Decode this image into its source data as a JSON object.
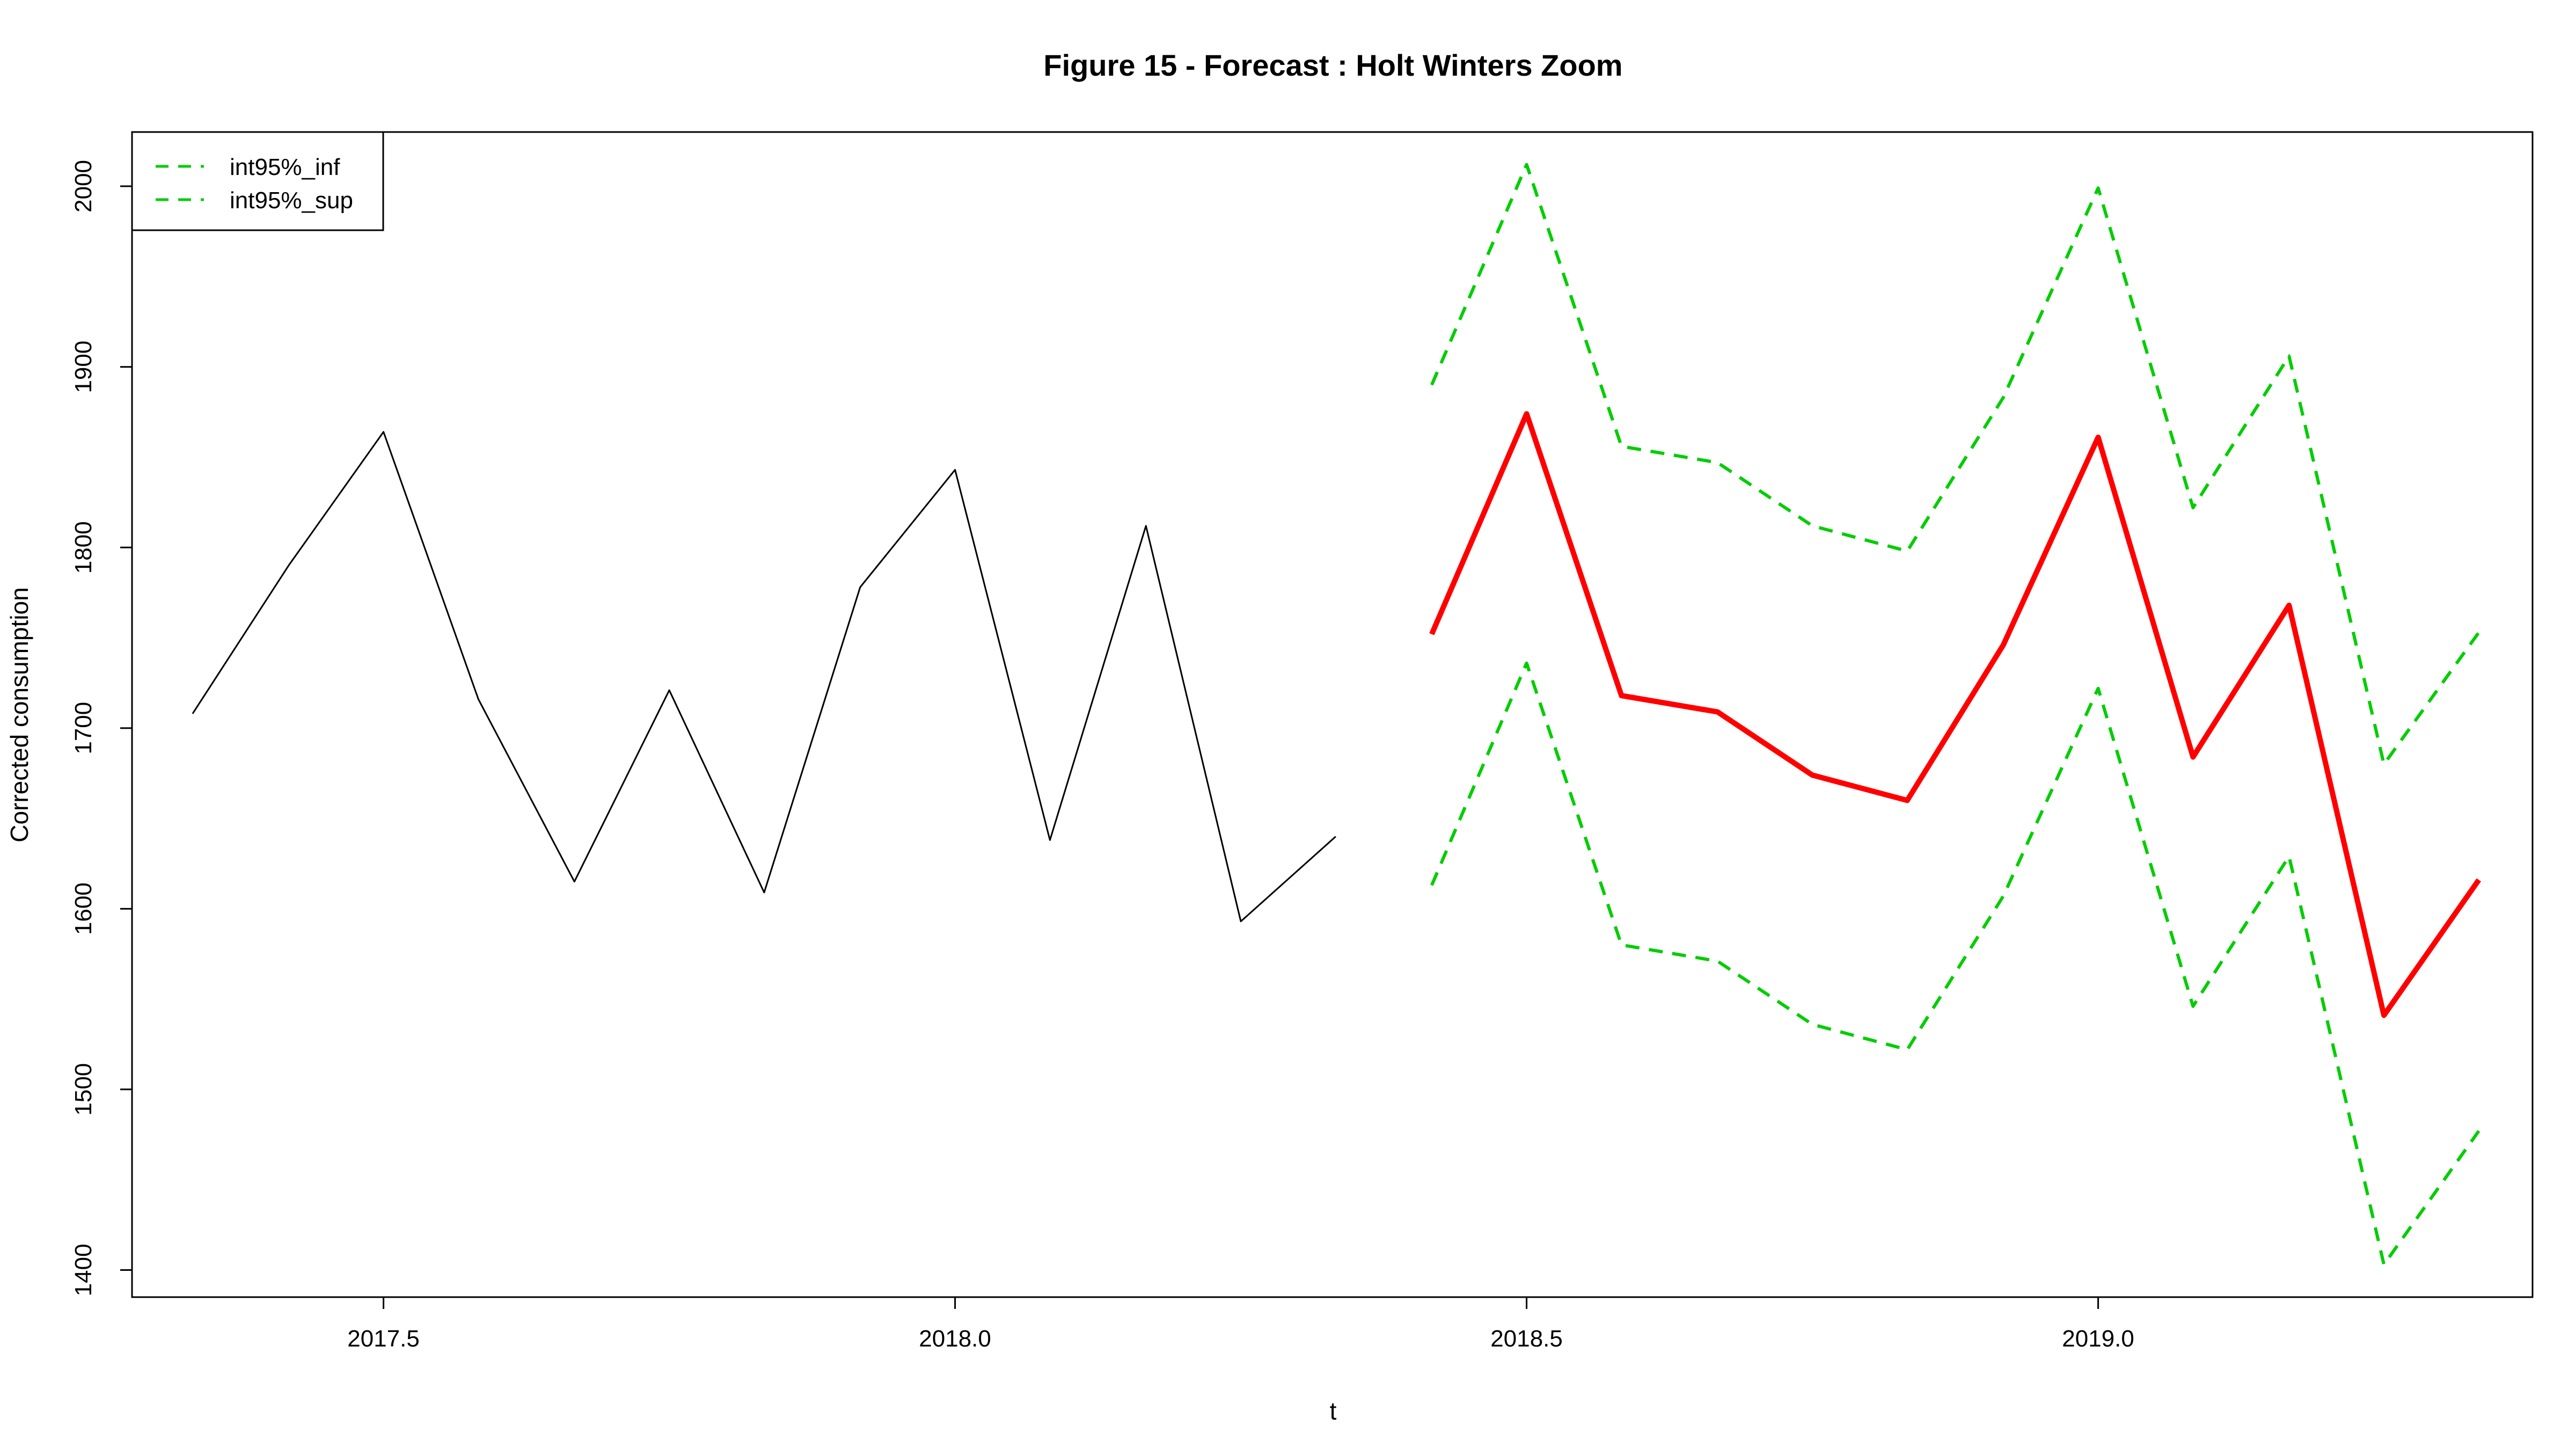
{
  "chart_data": {
    "type": "line",
    "title": "Figure 15 - Forecast : Holt Winters Zoom",
    "xlabel": "t",
    "ylabel": "Corrected consumption",
    "xlim": [
      2017.28,
      2019.38
    ],
    "ylim": [
      1385,
      2030
    ],
    "x_ticks": [
      2017.5,
      2018.0,
      2018.5,
      2019.0
    ],
    "x_tick_labels": [
      "2017.5",
      "2018.0",
      "2018.5",
      "2019.0"
    ],
    "y_ticks": [
      1400,
      1500,
      1600,
      1700,
      1800,
      1900,
      2000
    ],
    "y_tick_labels": [
      "1400",
      "1500",
      "1600",
      "1700",
      "1800",
      "1900",
      "2000"
    ],
    "grid": false,
    "legend": {
      "placement": "top-left",
      "entries": [
        "int95%_inf",
        "int95%_sup"
      ]
    },
    "series": [
      {
        "key": "observed",
        "color": "#000000",
        "style": "solid",
        "x": [
          2017.333,
          2017.417,
          2017.5,
          2017.583,
          2017.667,
          2017.75,
          2017.833,
          2017.917,
          2018.0,
          2018.083,
          2018.167,
          2018.25,
          2018.333
        ],
        "values": [
          1708,
          1790,
          1864,
          1716,
          1615,
          1721,
          1609,
          1778,
          1843,
          1638,
          1812,
          1593,
          1640
        ]
      },
      {
        "key": "forecast",
        "color": "#ff0000",
        "style": "solid-thick",
        "x": [
          2018.417,
          2018.5,
          2018.583,
          2018.667,
          2018.75,
          2018.833,
          2018.917,
          2019.0,
          2019.083,
          2019.167,
          2019.25,
          2019.333
        ],
        "values": [
          1752,
          1874,
          1718,
          1709,
          1674,
          1660,
          1746,
          1861,
          1684,
          1768,
          1541,
          1616
        ]
      },
      {
        "name": "int95%_inf",
        "color": "#00cd00",
        "style": "dashed",
        "x": [
          2018.417,
          2018.5,
          2018.583,
          2018.667,
          2018.75,
          2018.833,
          2018.917,
          2019.0,
          2019.083,
          2019.167,
          2019.25,
          2019.333
        ],
        "values": [
          1613,
          1736,
          1580,
          1571,
          1536,
          1522,
          1607,
          1722,
          1546,
          1629,
          1403,
          1477
        ]
      },
      {
        "name": "int95%_sup",
        "color": "#00cd00",
        "style": "dashed",
        "x": [
          2018.417,
          2018.5,
          2018.583,
          2018.667,
          2018.75,
          2018.833,
          2018.917,
          2019.0,
          2019.083,
          2019.167,
          2019.25,
          2019.333
        ],
        "values": [
          1890,
          2012,
          1856,
          1847,
          1812,
          1798,
          1883,
          1999,
          1822,
          1906,
          1680,
          1753
        ]
      }
    ]
  }
}
